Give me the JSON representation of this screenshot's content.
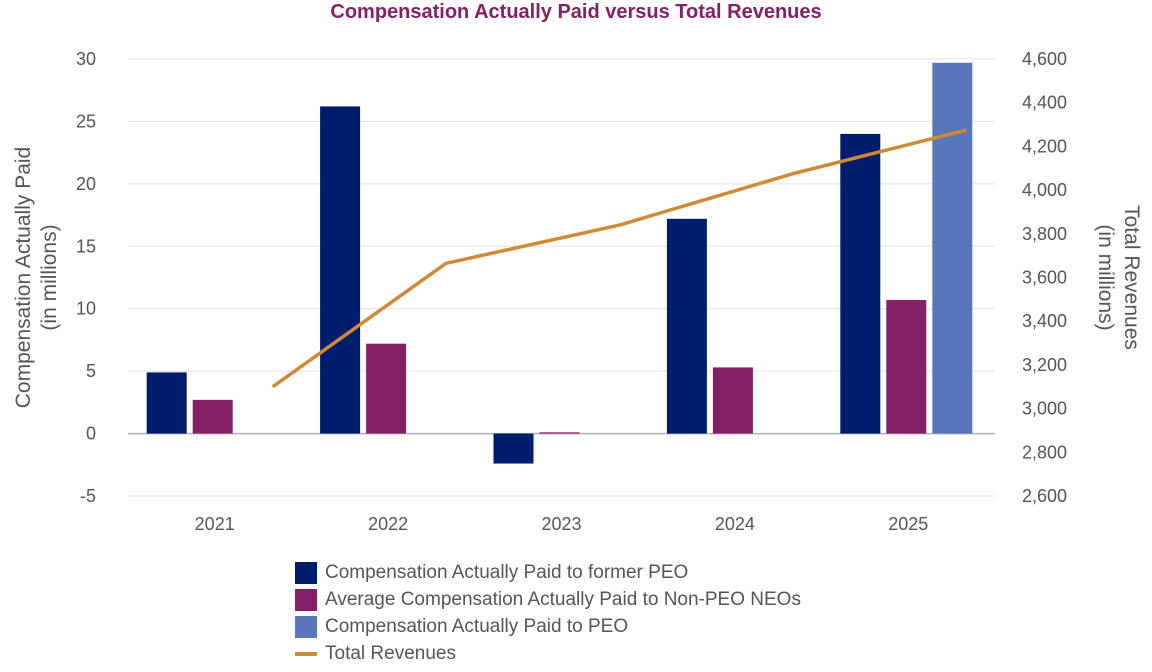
{
  "chart_data": {
    "type": "bar",
    "title": "Compensation Actually Paid versus Total Revenues",
    "categories": [
      "2021",
      "2022",
      "2023",
      "2024",
      "2025"
    ],
    "y_left": {
      "label_lines": [
        "Compensation Actually Paid",
        "(in millions)"
      ],
      "min": -5,
      "max": 30,
      "ticks": [
        -5,
        0,
        5,
        10,
        15,
        20,
        25,
        30
      ],
      "tick_labels": [
        "-5",
        "0",
        "5",
        "10",
        "15",
        "20",
        "25",
        "30"
      ]
    },
    "y_right": {
      "label_lines": [
        "Total Revenues",
        "(in millions)"
      ],
      "min": 2600,
      "max": 4600,
      "ticks": [
        2600,
        2800,
        3000,
        3200,
        3400,
        3600,
        3800,
        4000,
        4200,
        4400,
        4600
      ],
      "tick_labels": [
        "2,600",
        "2,800",
        "3,000",
        "3,200",
        "3,400",
        "3,600",
        "3,800",
        "4,000",
        "4,200",
        "4,400",
        "4,600"
      ]
    },
    "series": [
      {
        "name": "Compensation Actually Paid to former PEO",
        "type": "bar",
        "axis": "left",
        "color": "#001c6c",
        "values": [
          4.9,
          26.2,
          -2.4,
          17.2,
          24.0
        ]
      },
      {
        "name": "Average Compensation Actually Paid to Non-PEO NEOs",
        "type": "bar",
        "axis": "left",
        "color": "#862066",
        "values": [
          2.7,
          7.2,
          0.1,
          5.3,
          10.7
        ]
      },
      {
        "name": "Compensation Actually Paid to PEO",
        "type": "bar",
        "axis": "left",
        "color": "#5a76ba",
        "values": [
          null,
          null,
          null,
          null,
          29.7
        ]
      },
      {
        "name": "Total Revenues",
        "type": "line",
        "axis": "right",
        "color": "#d08a36",
        "values": [
          3100,
          3665,
          3840,
          4075,
          4275
        ]
      }
    ],
    "grid": true,
    "legend_position": "bottom",
    "title_color": "#862066"
  }
}
